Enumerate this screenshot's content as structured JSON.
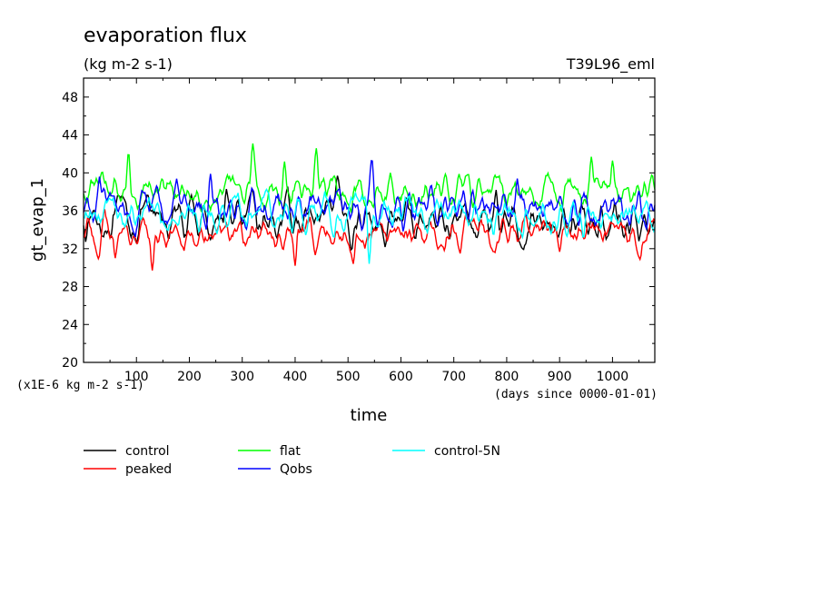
{
  "chart_data": {
    "type": "line",
    "title": "evaporation flux",
    "subtitle": "(kg m-2 s-1)",
    "experiment": "T39L96_eml",
    "xlabel": "time",
    "ylabel": "gt_evap_1",
    "x_units": "(days since 0000-01-01)",
    "y_units": "(x1E-6 kg m-2 s-1)",
    "xlim": [
      0,
      1080
    ],
    "ylim": [
      20,
      50
    ],
    "x_ticks": [
      100,
      200,
      300,
      400,
      500,
      600,
      700,
      800,
      900,
      1000
    ],
    "y_ticks": [
      20,
      24,
      28,
      32,
      36,
      40,
      44,
      48
    ],
    "legend_position": "bottom",
    "series": [
      {
        "name": "control",
        "color": "#000000",
        "mean": 35.0,
        "amp": 1.6,
        "extremes": [
          [
            270,
            38.3
          ],
          [
            480,
            39.7
          ],
          [
            780,
            38.2
          ],
          [
            1050,
            32.8
          ]
        ]
      },
      {
        "name": "peaked",
        "color": "#ff0000",
        "mean": 33.6,
        "amp": 1.3,
        "extremes": [
          [
            130,
            29.7
          ],
          [
            400,
            30.2
          ],
          [
            510,
            30.4
          ],
          [
            60,
            31.0
          ]
        ]
      },
      {
        "name": "flat",
        "color": "#00ff00",
        "mean": 38.2,
        "amp": 1.4,
        "extremes": [
          [
            85,
            42.2
          ],
          [
            320,
            43.1
          ],
          [
            440,
            42.6
          ],
          [
            380,
            41.2
          ],
          [
            960,
            41.7
          ],
          [
            1000,
            41.3
          ]
        ]
      },
      {
        "name": "Qobs",
        "color": "#0000ff",
        "mean": 36.2,
        "amp": 1.6,
        "extremes": [
          [
            545,
            41.5
          ],
          [
            240,
            39.9
          ],
          [
            820,
            39.4
          ],
          [
            30,
            39.6
          ]
        ]
      },
      {
        "name": "control-5N",
        "color": "#00ffff",
        "mean": 35.6,
        "amp": 1.4,
        "extremes": [
          [
            540,
            30.4
          ],
          [
            830,
            33.2
          ],
          [
            945,
            33.0
          ],
          [
            775,
            33.4
          ]
        ]
      }
    ]
  }
}
